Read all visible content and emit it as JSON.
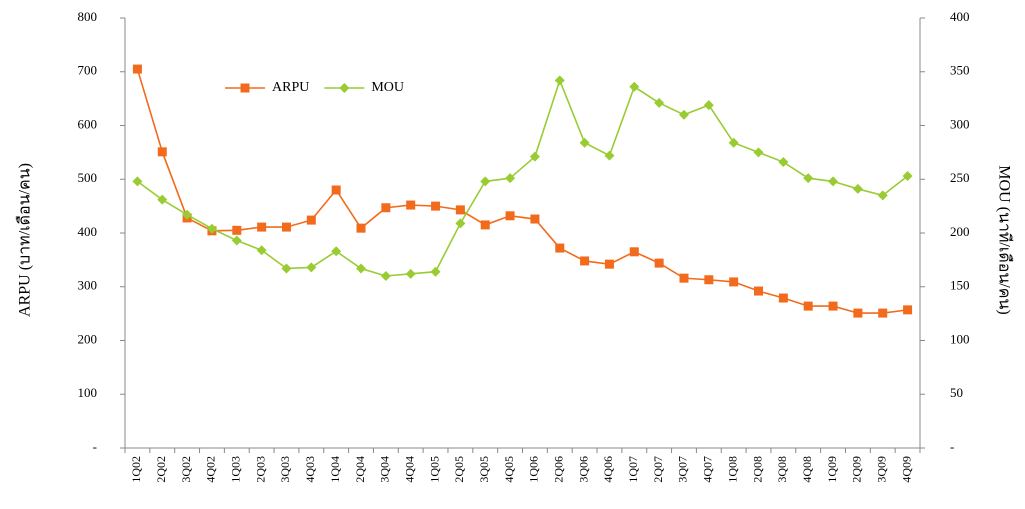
{
  "chart_data": {
    "type": "line",
    "categories": [
      "1Q02",
      "2Q02",
      "3Q02",
      "4Q02",
      "1Q03",
      "2Q03",
      "3Q03",
      "4Q03",
      "1Q04",
      "2Q04",
      "3Q04",
      "4Q04",
      "1Q05",
      "2Q05",
      "3Q05",
      "4Q05",
      "1Q06",
      "2Q06",
      "3Q06",
      "4Q06",
      "1Q07",
      "2Q07",
      "3Q07",
      "4Q07",
      "1Q08",
      "2Q08",
      "3Q08",
      "4Q08",
      "1Q09",
      "2Q09",
      "3Q09",
      "4Q09"
    ],
    "series": [
      {
        "name": "ARPU",
        "color": "#f26b1d",
        "marker": "square",
        "values": [
          705,
          551,
          428,
          404,
          405,
          411,
          411,
          424,
          480,
          409,
          447,
          452,
          450,
          443,
          415,
          432,
          426,
          372,
          348,
          342,
          365,
          344,
          316,
          313,
          309,
          292,
          279,
          264,
          264,
          251,
          251,
          257
        ]
      },
      {
        "name": "MOU",
        "color": "#99cc33",
        "marker": "diamond",
        "axis": "y2",
        "values": [
          248,
          231,
          217,
          204,
          193,
          184,
          167,
          168,
          183,
          167,
          160,
          162,
          164,
          209,
          248,
          251,
          271,
          342,
          284,
          272,
          336,
          321,
          310,
          319,
          284,
          275,
          266,
          251,
          248,
          241,
          235,
          253
        ]
      }
    ],
    "ylabel": "ARPU (บาท/เดือน/คน)",
    "y2label": "MOU (นาที/เดือน/คน)",
    "ylim": [
      0,
      800
    ],
    "yticks": [
      {
        "value": 0,
        "label": "-"
      },
      100,
      200,
      300,
      400,
      500,
      600,
      700,
      800
    ],
    "y2lim": [
      0,
      400
    ],
    "y2ticks": [
      {
        "value": 0,
        "label": "-"
      },
      50,
      100,
      150,
      200,
      250,
      300,
      350,
      400
    ],
    "legend": "upper left",
    "grid": false
  }
}
